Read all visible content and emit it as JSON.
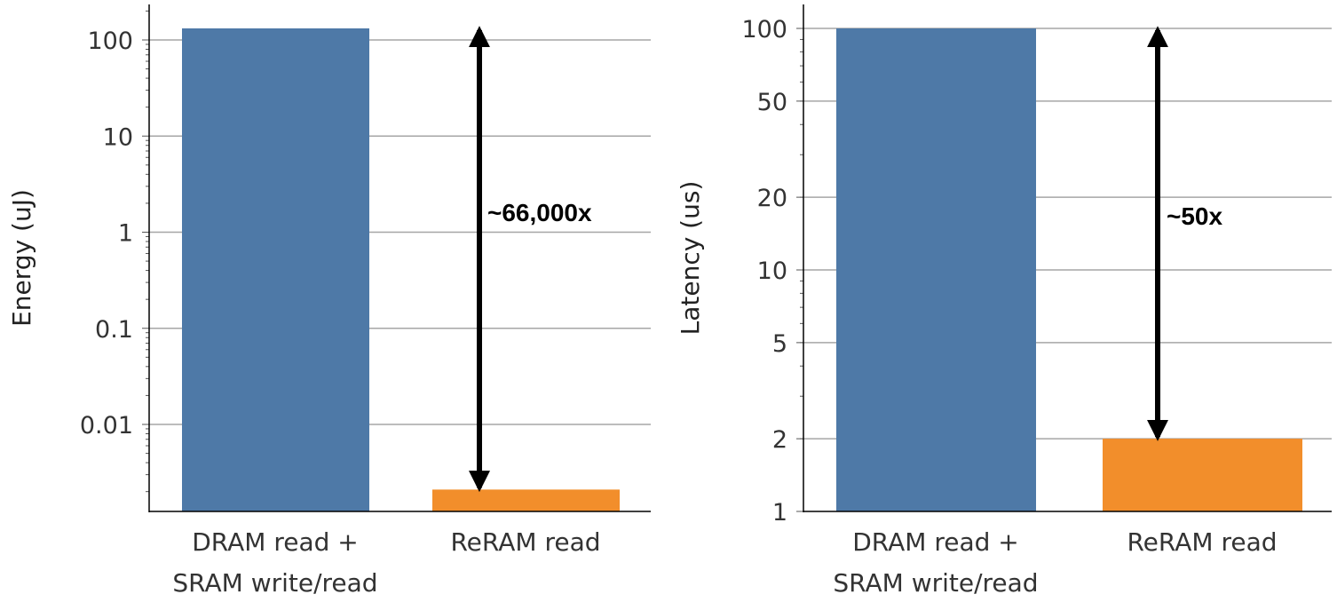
{
  "chart_data": [
    {
      "type": "bar",
      "scale": "log",
      "ylabel": "Energy (uJ)",
      "categories": [
        [
          "DRAM read +",
          "SRAM write/read"
        ],
        [
          "ReRAM read"
        ]
      ],
      "values": [
        132,
        0.0021
      ],
      "colors": [
        "#4e79a7",
        "#f28e2b"
      ],
      "yticks": [
        {
          "value": 100,
          "label": "100"
        },
        {
          "value": 10,
          "label": "10"
        },
        {
          "value": 1,
          "label": "1"
        },
        {
          "value": 0.1,
          "label": "0.1"
        },
        {
          "value": 0.01,
          "label": "0.01"
        }
      ],
      "ylim": [
        0.0011,
        200
      ],
      "grid": true,
      "annotation": {
        "text": "~66,000x",
        "from": 0.0021,
        "to": 132,
        "category": 1
      }
    },
    {
      "type": "bar",
      "scale": "log",
      "ylabel": "Latency (us)",
      "categories": [
        [
          "DRAM read +",
          "SRAM write/read"
        ],
        [
          "ReRAM read"
        ]
      ],
      "values": [
        100,
        2
      ],
      "colors": [
        "#4e79a7",
        "#f28e2b"
      ],
      "yticks": [
        {
          "value": 100,
          "label": "100"
        },
        {
          "value": 50,
          "label": "50"
        },
        {
          "value": 20,
          "label": "20"
        },
        {
          "value": 10,
          "label": "10"
        },
        {
          "value": 5,
          "label": "5"
        },
        {
          "value": 2,
          "label": "2"
        },
        {
          "value": 1,
          "label": "1"
        }
      ],
      "ylim": [
        0.8,
        120
      ],
      "grid": true,
      "annotation": {
        "text": "~50x",
        "from": 2,
        "to": 100,
        "category": 1
      }
    }
  ]
}
